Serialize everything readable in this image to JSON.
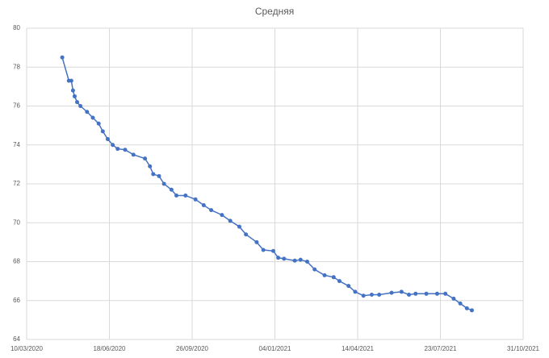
{
  "chart_data": {
    "type": "line",
    "title": "Средняя",
    "x": [
      "22/04/2020",
      "30/04/2020",
      "03/05/2020",
      "05/05/2020",
      "07/05/2020",
      "10/05/2020",
      "14/05/2020",
      "22/05/2020",
      "29/05/2020",
      "05/06/2020",
      "10/06/2020",
      "16/06/2020",
      "22/06/2020",
      "28/06/2020",
      "07/07/2020",
      "17/07/2020",
      "31/07/2020",
      "06/08/2020",
      "10/08/2020",
      "17/08/2020",
      "23/08/2020",
      "01/09/2020",
      "07/09/2020",
      "18/09/2020",
      "30/09/2020",
      "10/10/2020",
      "19/10/2020",
      "01/11/2020",
      "11/11/2020",
      "22/11/2020",
      "30/11/2020",
      "13/12/2020",
      "21/12/2020",
      "02/01/2021",
      "08/01/2021",
      "15/01/2021",
      "28/01/2021",
      "04/02/2021",
      "12/02/2021",
      "21/02/2021",
      "05/03/2021",
      "16/03/2021",
      "23/03/2021",
      "03/04/2021",
      "11/04/2021",
      "21/04/2021",
      "01/05/2021",
      "10/05/2021",
      "25/05/2021",
      "06/06/2021",
      "15/06/2021",
      "23/06/2021",
      "06/07/2021",
      "19/07/2021",
      "29/07/2021",
      "08/08/2021",
      "16/08/2021",
      "24/08/2021",
      "30/08/2021"
    ],
    "values": [
      78.5,
      77.3,
      77.3,
      76.8,
      76.5,
      76.2,
      76.0,
      75.7,
      75.4,
      75.1,
      74.7,
      74.3,
      74.0,
      73.8,
      73.75,
      73.5,
      73.3,
      72.9,
      72.5,
      72.4,
      72.0,
      71.7,
      71.4,
      71.4,
      71.2,
      70.9,
      70.65,
      70.4,
      70.1,
      69.8,
      69.4,
      69.0,
      68.6,
      68.55,
      68.2,
      68.15,
      68.05,
      68.1,
      68.0,
      67.6,
      67.3,
      67.2,
      67.0,
      66.75,
      66.45,
      66.25,
      66.3,
      66.3,
      66.4,
      66.45,
      66.3,
      66.35,
      66.35,
      66.35,
      66.35,
      66.1,
      65.85,
      65.6,
      65.5
    ],
    "color": "#4472c4",
    "xlim": [
      "10/03/2020",
      "31/10/2021"
    ],
    "xticks": [
      "10/03/2020",
      "18/06/2020",
      "26/09/2020",
      "04/01/2021",
      "14/04/2021",
      "23/07/2021",
      "31/10/2021"
    ],
    "ylim": [
      64,
      80
    ],
    "yticks": [
      64,
      66,
      68,
      70,
      72,
      74,
      76,
      78,
      80
    ],
    "grid": true
  }
}
